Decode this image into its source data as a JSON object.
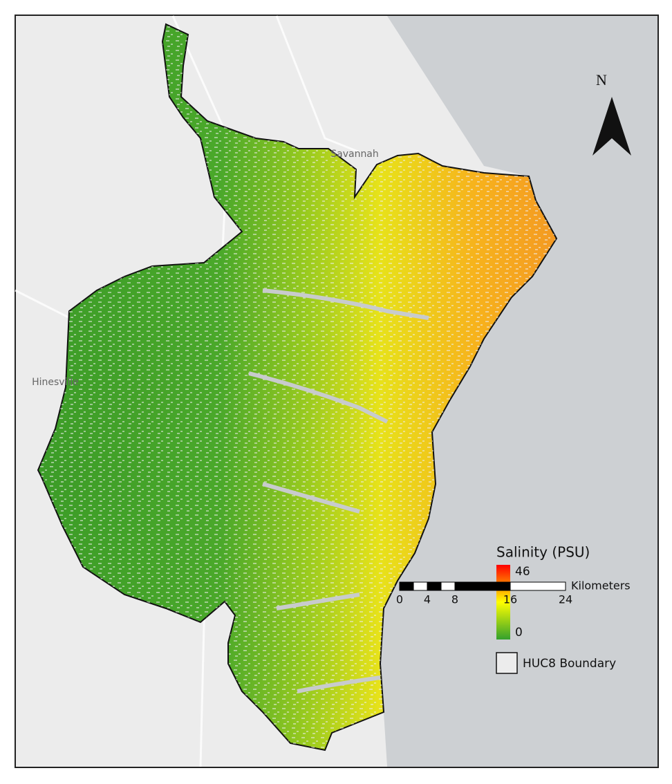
{
  "map": {
    "north_label": "N",
    "cities": [
      "Savannah",
      "Hinesville"
    ]
  },
  "legend": {
    "title": "Salinity (PSU)",
    "max": 46,
    "min": 0,
    "boundary": "HUC8 Boundary"
  },
  "scale_bar": {
    "unit": "Kilometers",
    "ticks": [
      0,
      4,
      8,
      16,
      24
    ]
  }
}
